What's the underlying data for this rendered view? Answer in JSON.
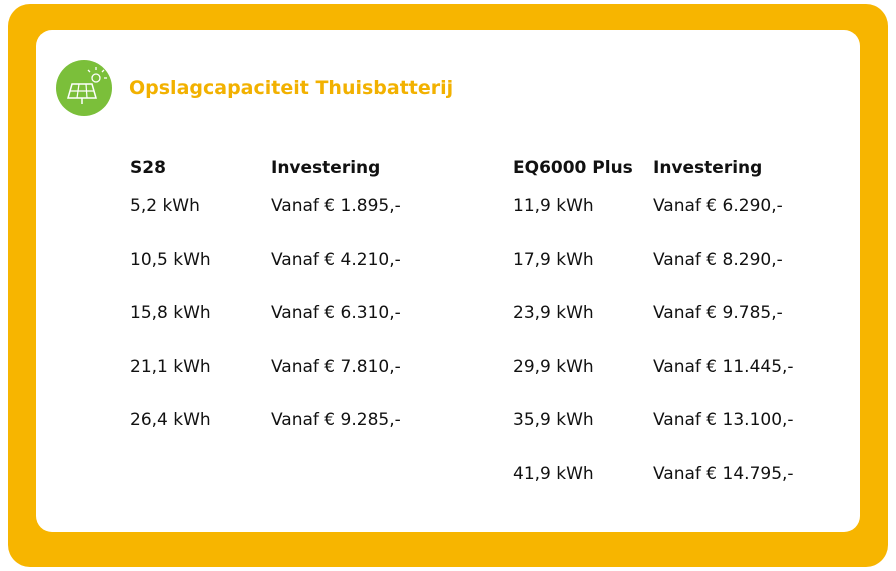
{
  "header": {
    "title": "Opslagcapaciteit Thuisbatterij"
  },
  "tables": [
    {
      "headers": [
        "S28",
        "Investering"
      ],
      "rows": [
        [
          "5,2 kWh",
          "Vanaf € 1.895,-"
        ],
        [
          "10,5 kWh",
          "Vanaf € 4.210,-"
        ],
        [
          "15,8 kWh",
          "Vanaf € 6.310,-"
        ],
        [
          "21,1 kWh",
          "Vanaf € 7.810,-"
        ],
        [
          "26,4 kWh",
          "Vanaf € 9.285,-"
        ]
      ]
    },
    {
      "headers": [
        "EQ6000 Plus",
        "Investering"
      ],
      "rows": [
        [
          "11,9 kWh",
          "Vanaf € 6.290,-"
        ],
        [
          "17,9 kWh",
          "Vanaf € 8.290,-"
        ],
        [
          "23,9 kWh",
          "Vanaf € 9.785,-"
        ],
        [
          "29,9 kWh",
          "Vanaf € 11.445,-"
        ],
        [
          "35,9 kWh",
          "Vanaf € 13.100,-"
        ],
        [
          "41,9 kWh",
          "Vanaf € 14.795,-"
        ]
      ]
    }
  ]
}
